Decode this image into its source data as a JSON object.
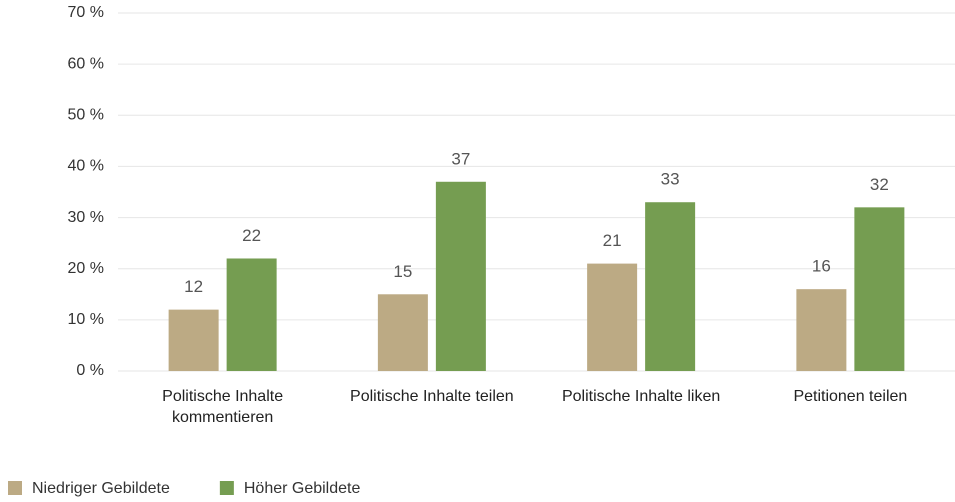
{
  "chart_data": {
    "type": "bar",
    "categories": [
      "Politische Inhalte kommentieren",
      "Politische Inhalte teilen",
      "Politische Inhalte liken",
      "Petitionen teilen"
    ],
    "series": [
      {
        "name": "Niedriger Gebildete",
        "color": "#bcaa84",
        "values": [
          12,
          15,
          21,
          16
        ]
      },
      {
        "name": "Höher Gebildete",
        "color": "#759d51",
        "values": [
          22,
          37,
          33,
          32
        ]
      }
    ],
    "ylim": [
      0,
      70
    ],
    "yticks": [
      {
        "value": 0,
        "label": "0 %"
      },
      {
        "value": 10,
        "label": "10 %"
      },
      {
        "value": 20,
        "label": "20 %"
      },
      {
        "value": 30,
        "label": "30 %"
      },
      {
        "value": 40,
        "label": "40 %"
      },
      {
        "value": 50,
        "label": "50 %"
      },
      {
        "value": 60,
        "label": "60 %"
      },
      {
        "value": 70,
        "label": "70 %"
      }
    ],
    "grid": true,
    "legend": "bottom-left"
  }
}
